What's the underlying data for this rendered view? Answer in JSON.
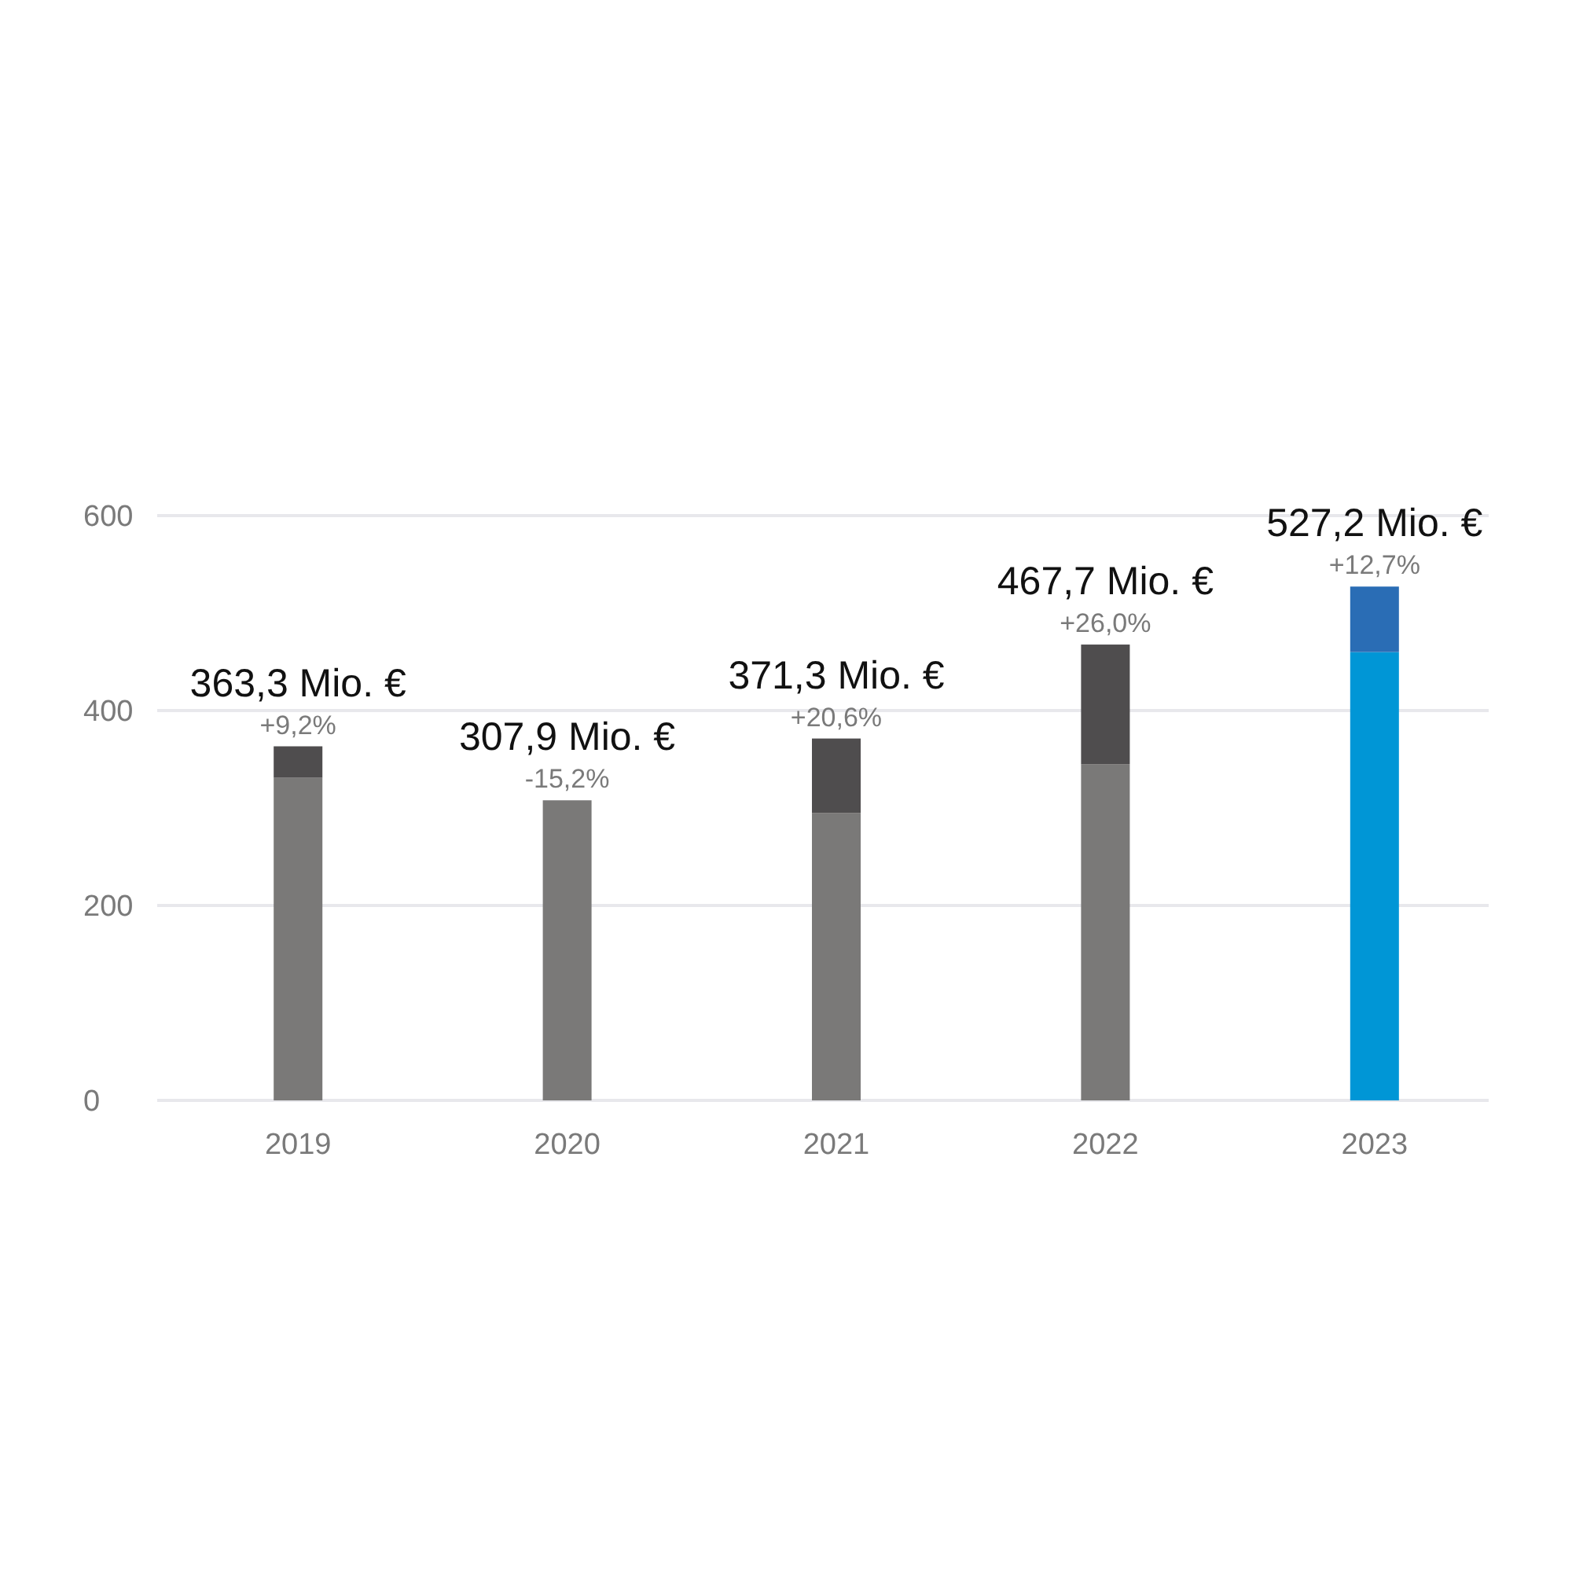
{
  "chart_data": {
    "type": "bar",
    "stacked": true,
    "categories": [
      "2019",
      "2020",
      "2021",
      "2022",
      "2023"
    ],
    "series": [
      {
        "colors": [
          "#7a7978",
          "#7a7978",
          "#7a7978",
          "#7a7978",
          "#0096d6"
        ],
        "values": [
          331,
          307.9,
          295,
          345,
          460
        ]
      },
      {
        "colors": [
          "#4f4d4e",
          null,
          "#4f4d4e",
          "#4f4d4e",
          "#2a6db5"
        ],
        "values": [
          32.3,
          null,
          76.3,
          122.7,
          67.2
        ]
      }
    ],
    "ylim": [
      0,
      600
    ],
    "yticks": [
      0,
      200,
      400,
      600
    ],
    "grid": "y",
    "totals": [
      "363,3 Mio. €",
      "307,9 Mio. €",
      "371,3 Mio. €",
      "467,7 Mio. €",
      "527,2 Mio. €"
    ],
    "annotations": [
      "+9,2%",
      "-15,2%",
      "+20,6%",
      "+26,0%",
      "+12,7%"
    ]
  }
}
